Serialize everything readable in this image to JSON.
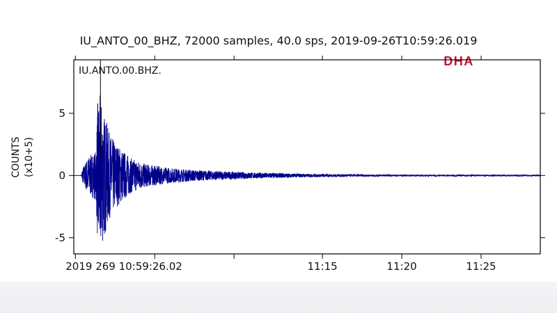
{
  "title": "IU_ANTO_00_BHZ, 72000 samples, 40.0 sps, 2019-09-26T10:59:26.019",
  "watermark": "DHA",
  "colors": {
    "trace": "#00008b",
    "watermark": "#c8102e",
    "axis": "#000000",
    "text": "#111111"
  },
  "chart_data": {
    "type": "line",
    "title": "IU_ANTO_00_BHZ, 72000 samples, 40.0 sps, 2019-09-26T10:59:26.019",
    "series": [
      {
        "name": "IU.ANTO.00.BHZ.",
        "color": "#00008b"
      }
    ],
    "ylabel": "COUNTS",
    "ylabel_scale": "(x10+5)",
    "ylim": [
      -6.3,
      9.3
    ],
    "yticks": [
      {
        "value": 5,
        "label": "5"
      },
      {
        "value": 0,
        "label": "0"
      },
      {
        "value": -5,
        "label": "-5"
      }
    ],
    "xaxis": {
      "unit": "minutes after 2019-09-26T10:59:26.02",
      "range": [
        -0.1,
        29.3
      ],
      "ticks": [
        {
          "value": 0,
          "label": "2019 269 10:59:26.02"
        },
        {
          "value": 15.57,
          "label": "11:15"
        },
        {
          "value": 20.57,
          "label": "11:20"
        },
        {
          "value": 25.57,
          "label": "11:25"
        }
      ],
      "minor_ticks": [
        5.0,
        10.0
      ]
    },
    "event_marker_minute": 1.58,
    "envelope": [
      {
        "t": 0.35,
        "amp": 0.0
      },
      {
        "t": 0.45,
        "amp": 0.6
      },
      {
        "t": 0.8,
        "amp": 1.5
      },
      {
        "t": 1.3,
        "amp": 2.0
      },
      {
        "t": 1.4,
        "amp": 6.2
      },
      {
        "t": 1.55,
        "amp": 6.5
      },
      {
        "t": 1.8,
        "amp": 5.0
      },
      {
        "t": 2.2,
        "amp": 3.2
      },
      {
        "t": 2.7,
        "amp": 2.4
      },
      {
        "t": 3.5,
        "amp": 1.4
      },
      {
        "t": 4.5,
        "amp": 0.9
      },
      {
        "t": 6.0,
        "amp": 0.6
      },
      {
        "t": 8.0,
        "amp": 0.4
      },
      {
        "t": 11.0,
        "amp": 0.25
      },
      {
        "t": 15.0,
        "amp": 0.12
      },
      {
        "t": 20.0,
        "amp": 0.06
      },
      {
        "t": 29.3,
        "amp": 0.04
      }
    ],
    "grid": false,
    "legend": "none"
  }
}
